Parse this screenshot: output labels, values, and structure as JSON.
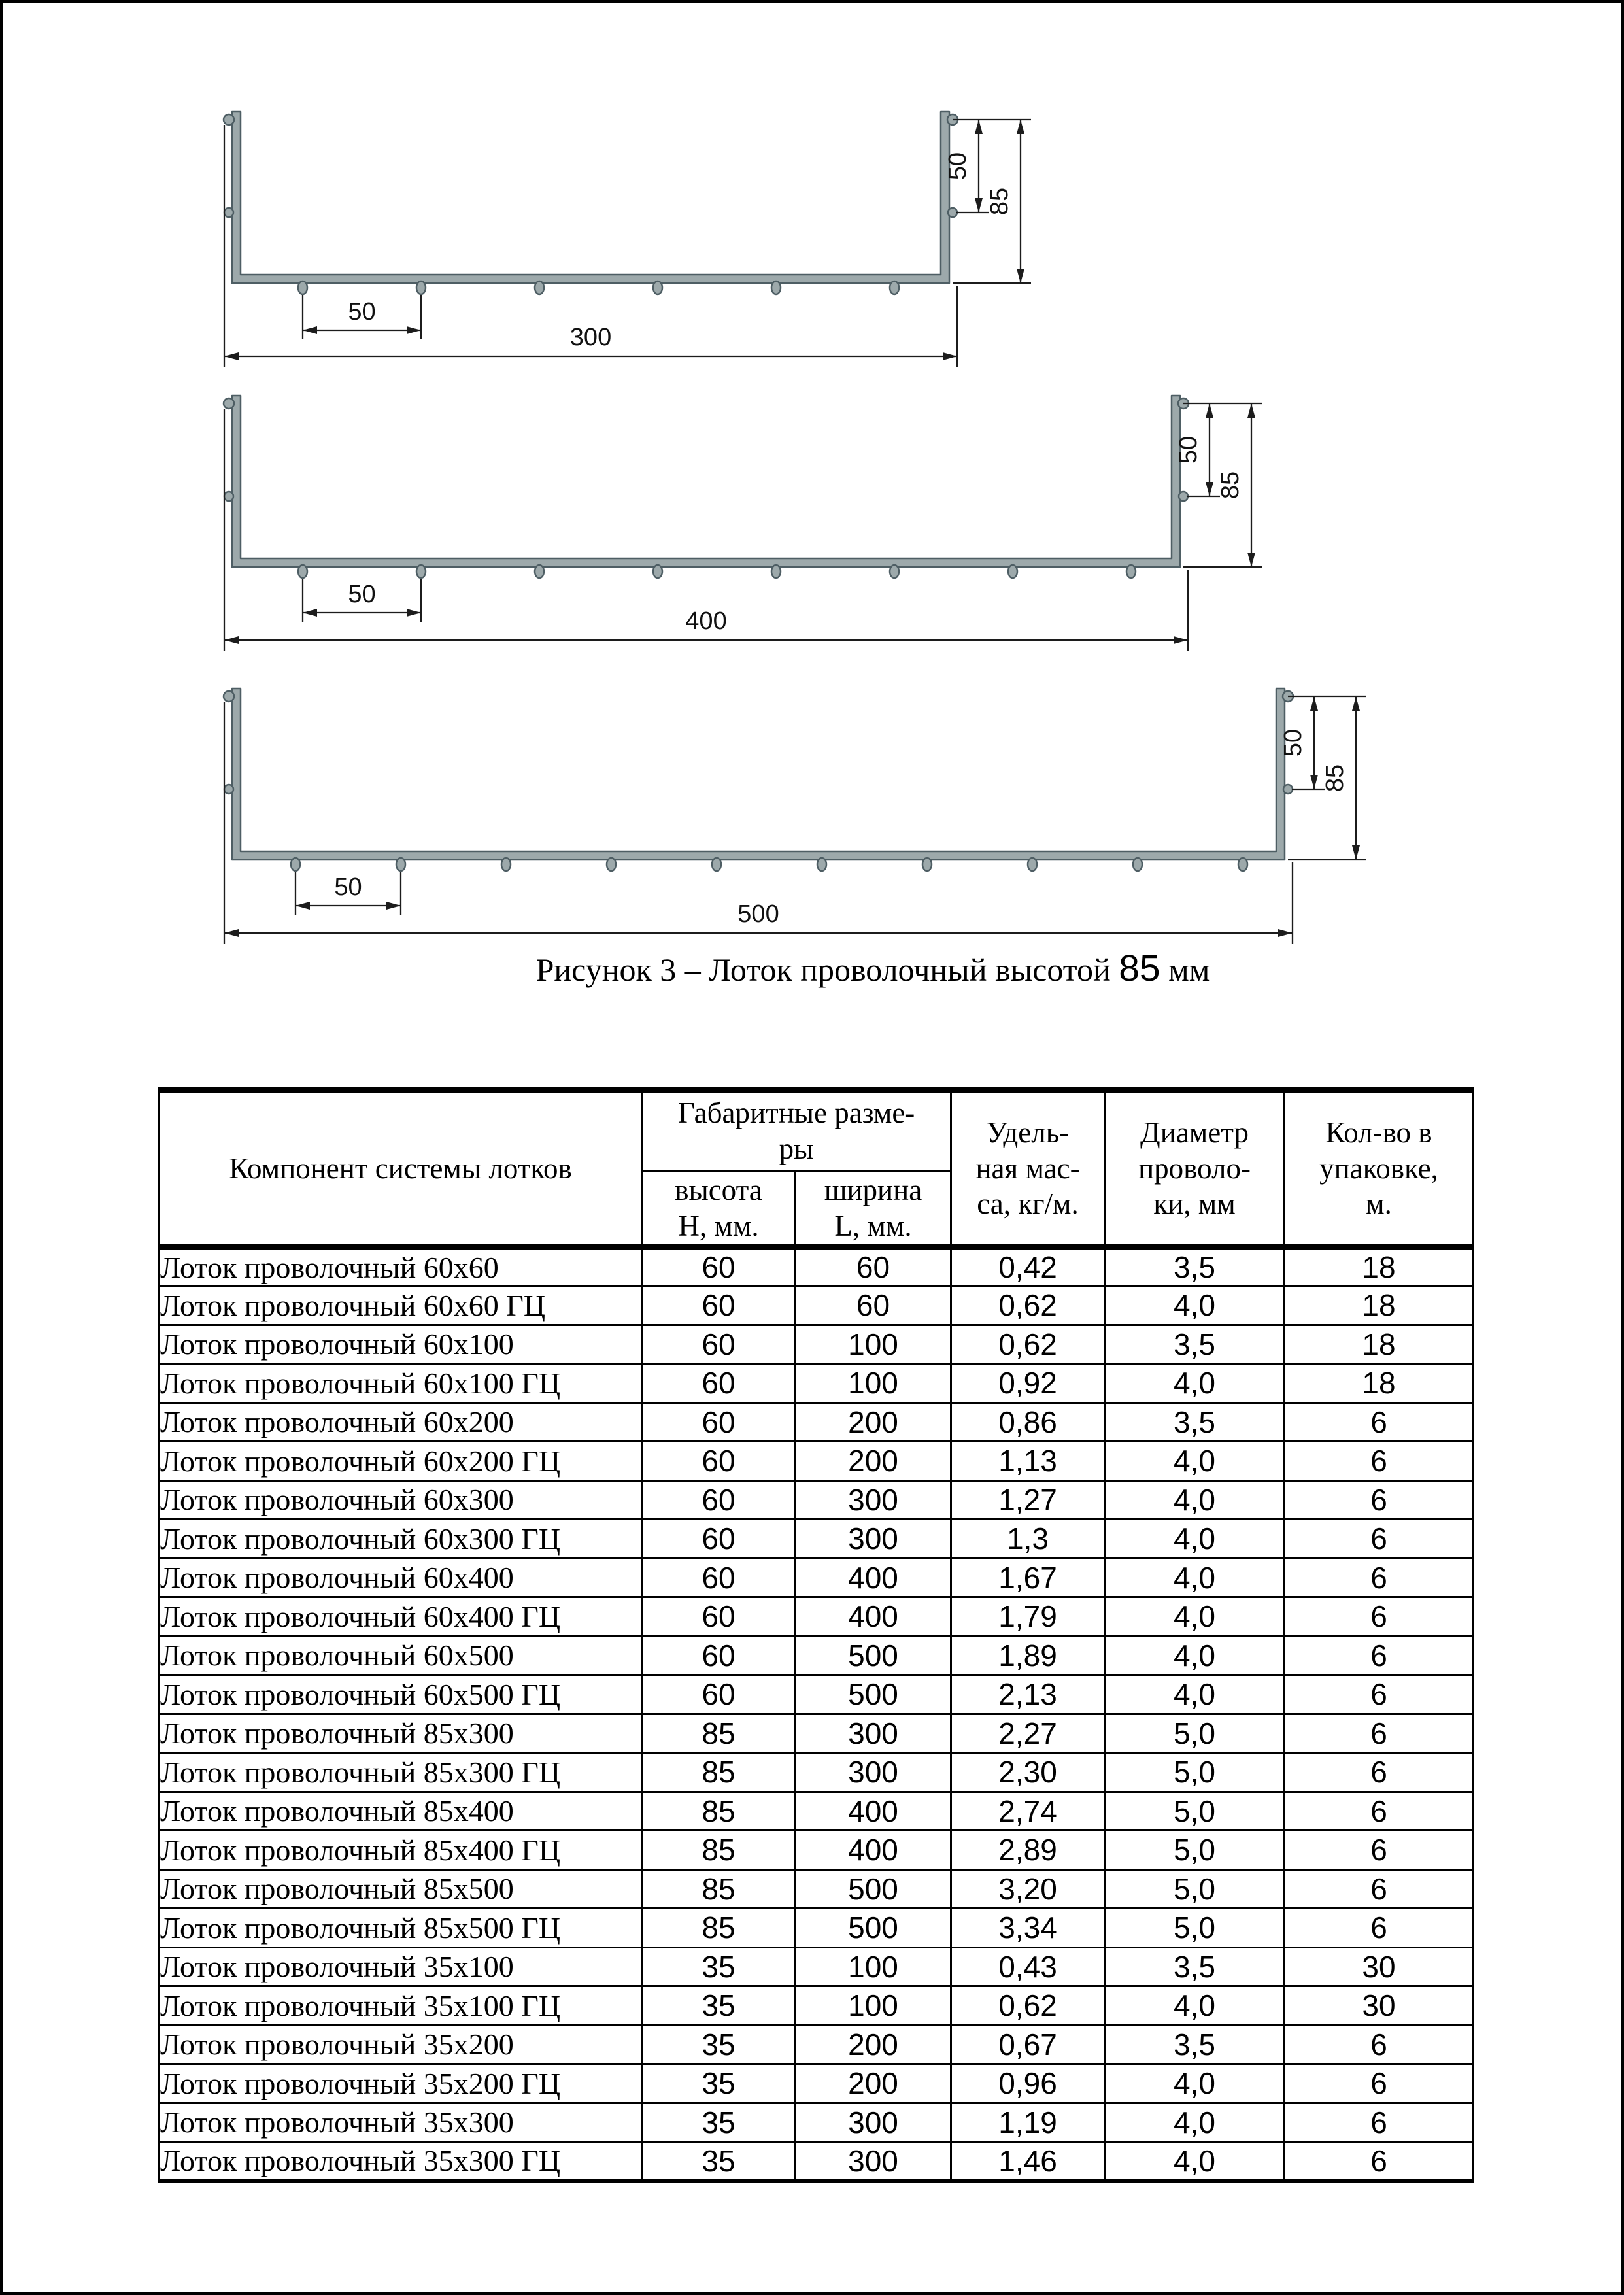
{
  "figure": {
    "caption": {
      "prefix": "Рисунок 3 – Лоток проволочный высотой ",
      "value": "85",
      "suffix": " мм"
    },
    "colors": {
      "metal_fill": "#9da9ab",
      "metal_stroke": "#4e5e64",
      "dim_line": "#1c1c1c"
    },
    "drawings": [
      {
        "width_label": "300",
        "pitch_label": "50",
        "upper_height_label": "50",
        "total_height_label": "85"
      },
      {
        "width_label": "400",
        "pitch_label": "50",
        "upper_height_label": "50",
        "total_height_label": "85"
      },
      {
        "width_label": "500",
        "pitch_label": "50",
        "upper_height_label": "50",
        "total_height_label": "85"
      }
    ]
  },
  "table": {
    "headers": {
      "component": "Компонент системы лотков",
      "dims_group": [
        "Габаритные разме-",
        "ры"
      ],
      "height": [
        "высота",
        "H, мм."
      ],
      "width": [
        "ширина",
        "L, мм."
      ],
      "mass": [
        "Удель-",
        "ная мас-",
        "са, кг/м."
      ],
      "diameter": [
        "Диаметр",
        "проволо-",
        "ки, мм"
      ],
      "qty": [
        "Кол-во в",
        "упаковке,",
        "м."
      ]
    },
    "rows": [
      {
        "name": "Лоток проволочный 60х60",
        "h": "60",
        "l": "60",
        "mass": "0,42",
        "d": "3,5",
        "qty": "18"
      },
      {
        "name": "Лоток проволочный 60х60 ГЦ",
        "h": "60",
        "l": "60",
        "mass": "0,62",
        "d": "4,0",
        "qty": "18"
      },
      {
        "name": "Лоток проволочный 60х100",
        "h": "60",
        "l": "100",
        "mass": "0,62",
        "d": "3,5",
        "qty": "18"
      },
      {
        "name": "Лоток проволочный 60х100 ГЦ",
        "h": "60",
        "l": "100",
        "mass": "0,92",
        "d": "4,0",
        "qty": "18"
      },
      {
        "name": "Лоток проволочный 60х200",
        "h": "60",
        "l": "200",
        "mass": "0,86",
        "d": "3,5",
        "qty": "6"
      },
      {
        "name": "Лоток проволочный 60х200 ГЦ",
        "h": "60",
        "l": "200",
        "mass": "1,13",
        "d": "4,0",
        "qty": "6"
      },
      {
        "name": "Лоток проволочный 60х300",
        "h": "60",
        "l": "300",
        "mass": "1,27",
        "d": "4,0",
        "qty": "6"
      },
      {
        "name": "Лоток проволочный 60х300 ГЦ",
        "h": "60",
        "l": "300",
        "mass": "1,3",
        "d": "4,0",
        "qty": "6"
      },
      {
        "name": "Лоток проволочный 60х400",
        "h": "60",
        "l": "400",
        "mass": "1,67",
        "d": "4,0",
        "qty": "6"
      },
      {
        "name": "Лоток проволочный 60х400 ГЦ",
        "h": "60",
        "l": "400",
        "mass": "1,79",
        "d": "4,0",
        "qty": "6"
      },
      {
        "name": "Лоток проволочный 60х500",
        "h": "60",
        "l": "500",
        "mass": "1,89",
        "d": "4,0",
        "qty": "6"
      },
      {
        "name": "Лоток проволочный 60х500 ГЦ",
        "h": "60",
        "l": "500",
        "mass": "2,13",
        "d": "4,0",
        "qty": "6"
      },
      {
        "name": "Лоток проволочный 85х300",
        "h": "85",
        "l": "300",
        "mass": "2,27",
        "d": "5,0",
        "qty": "6"
      },
      {
        "name": "Лоток проволочный 85х300 ГЦ",
        "h": "85",
        "l": "300",
        "mass": "2,30",
        "d": "5,0",
        "qty": "6"
      },
      {
        "name": "Лоток проволочный 85х400",
        "h": "85",
        "l": "400",
        "mass": "2,74",
        "d": "5,0",
        "qty": "6"
      },
      {
        "name": "Лоток проволочный 85х400 ГЦ",
        "h": "85",
        "l": "400",
        "mass": "2,89",
        "d": "5,0",
        "qty": "6"
      },
      {
        "name": "Лоток проволочный 85х500",
        "h": "85",
        "l": "500",
        "mass": "3,20",
        "d": "5,0",
        "qty": "6"
      },
      {
        "name": "Лоток проволочный 85х500 ГЦ",
        "h": "85",
        "l": "500",
        "mass": "3,34",
        "d": "5,0",
        "qty": "6"
      },
      {
        "name": "Лоток проволочный 35х100",
        "h": "35",
        "l": "100",
        "mass": "0,43",
        "d": "3,5",
        "qty": "30"
      },
      {
        "name": "Лоток проволочный 35х100 ГЦ",
        "h": "35",
        "l": "100",
        "mass": "0,62",
        "d": "4,0",
        "qty": "30"
      },
      {
        "name": "Лоток проволочный 35х200",
        "h": "35",
        "l": "200",
        "mass": "0,67",
        "d": "3,5",
        "qty": "6"
      },
      {
        "name": "Лоток проволочный 35х200 ГЦ",
        "h": "35",
        "l": "200",
        "mass": "0,96",
        "d": "4,0",
        "qty": "6"
      },
      {
        "name": "Лоток проволочный 35х300",
        "h": "35",
        "l": "300",
        "mass": "1,19",
        "d": "4,0",
        "qty": "6"
      },
      {
        "name": "Лоток проволочный 35х300 ГЦ",
        "h": "35",
        "l": "300",
        "mass": "1,46",
        "d": "4,0",
        "qty": "6"
      }
    ]
  }
}
